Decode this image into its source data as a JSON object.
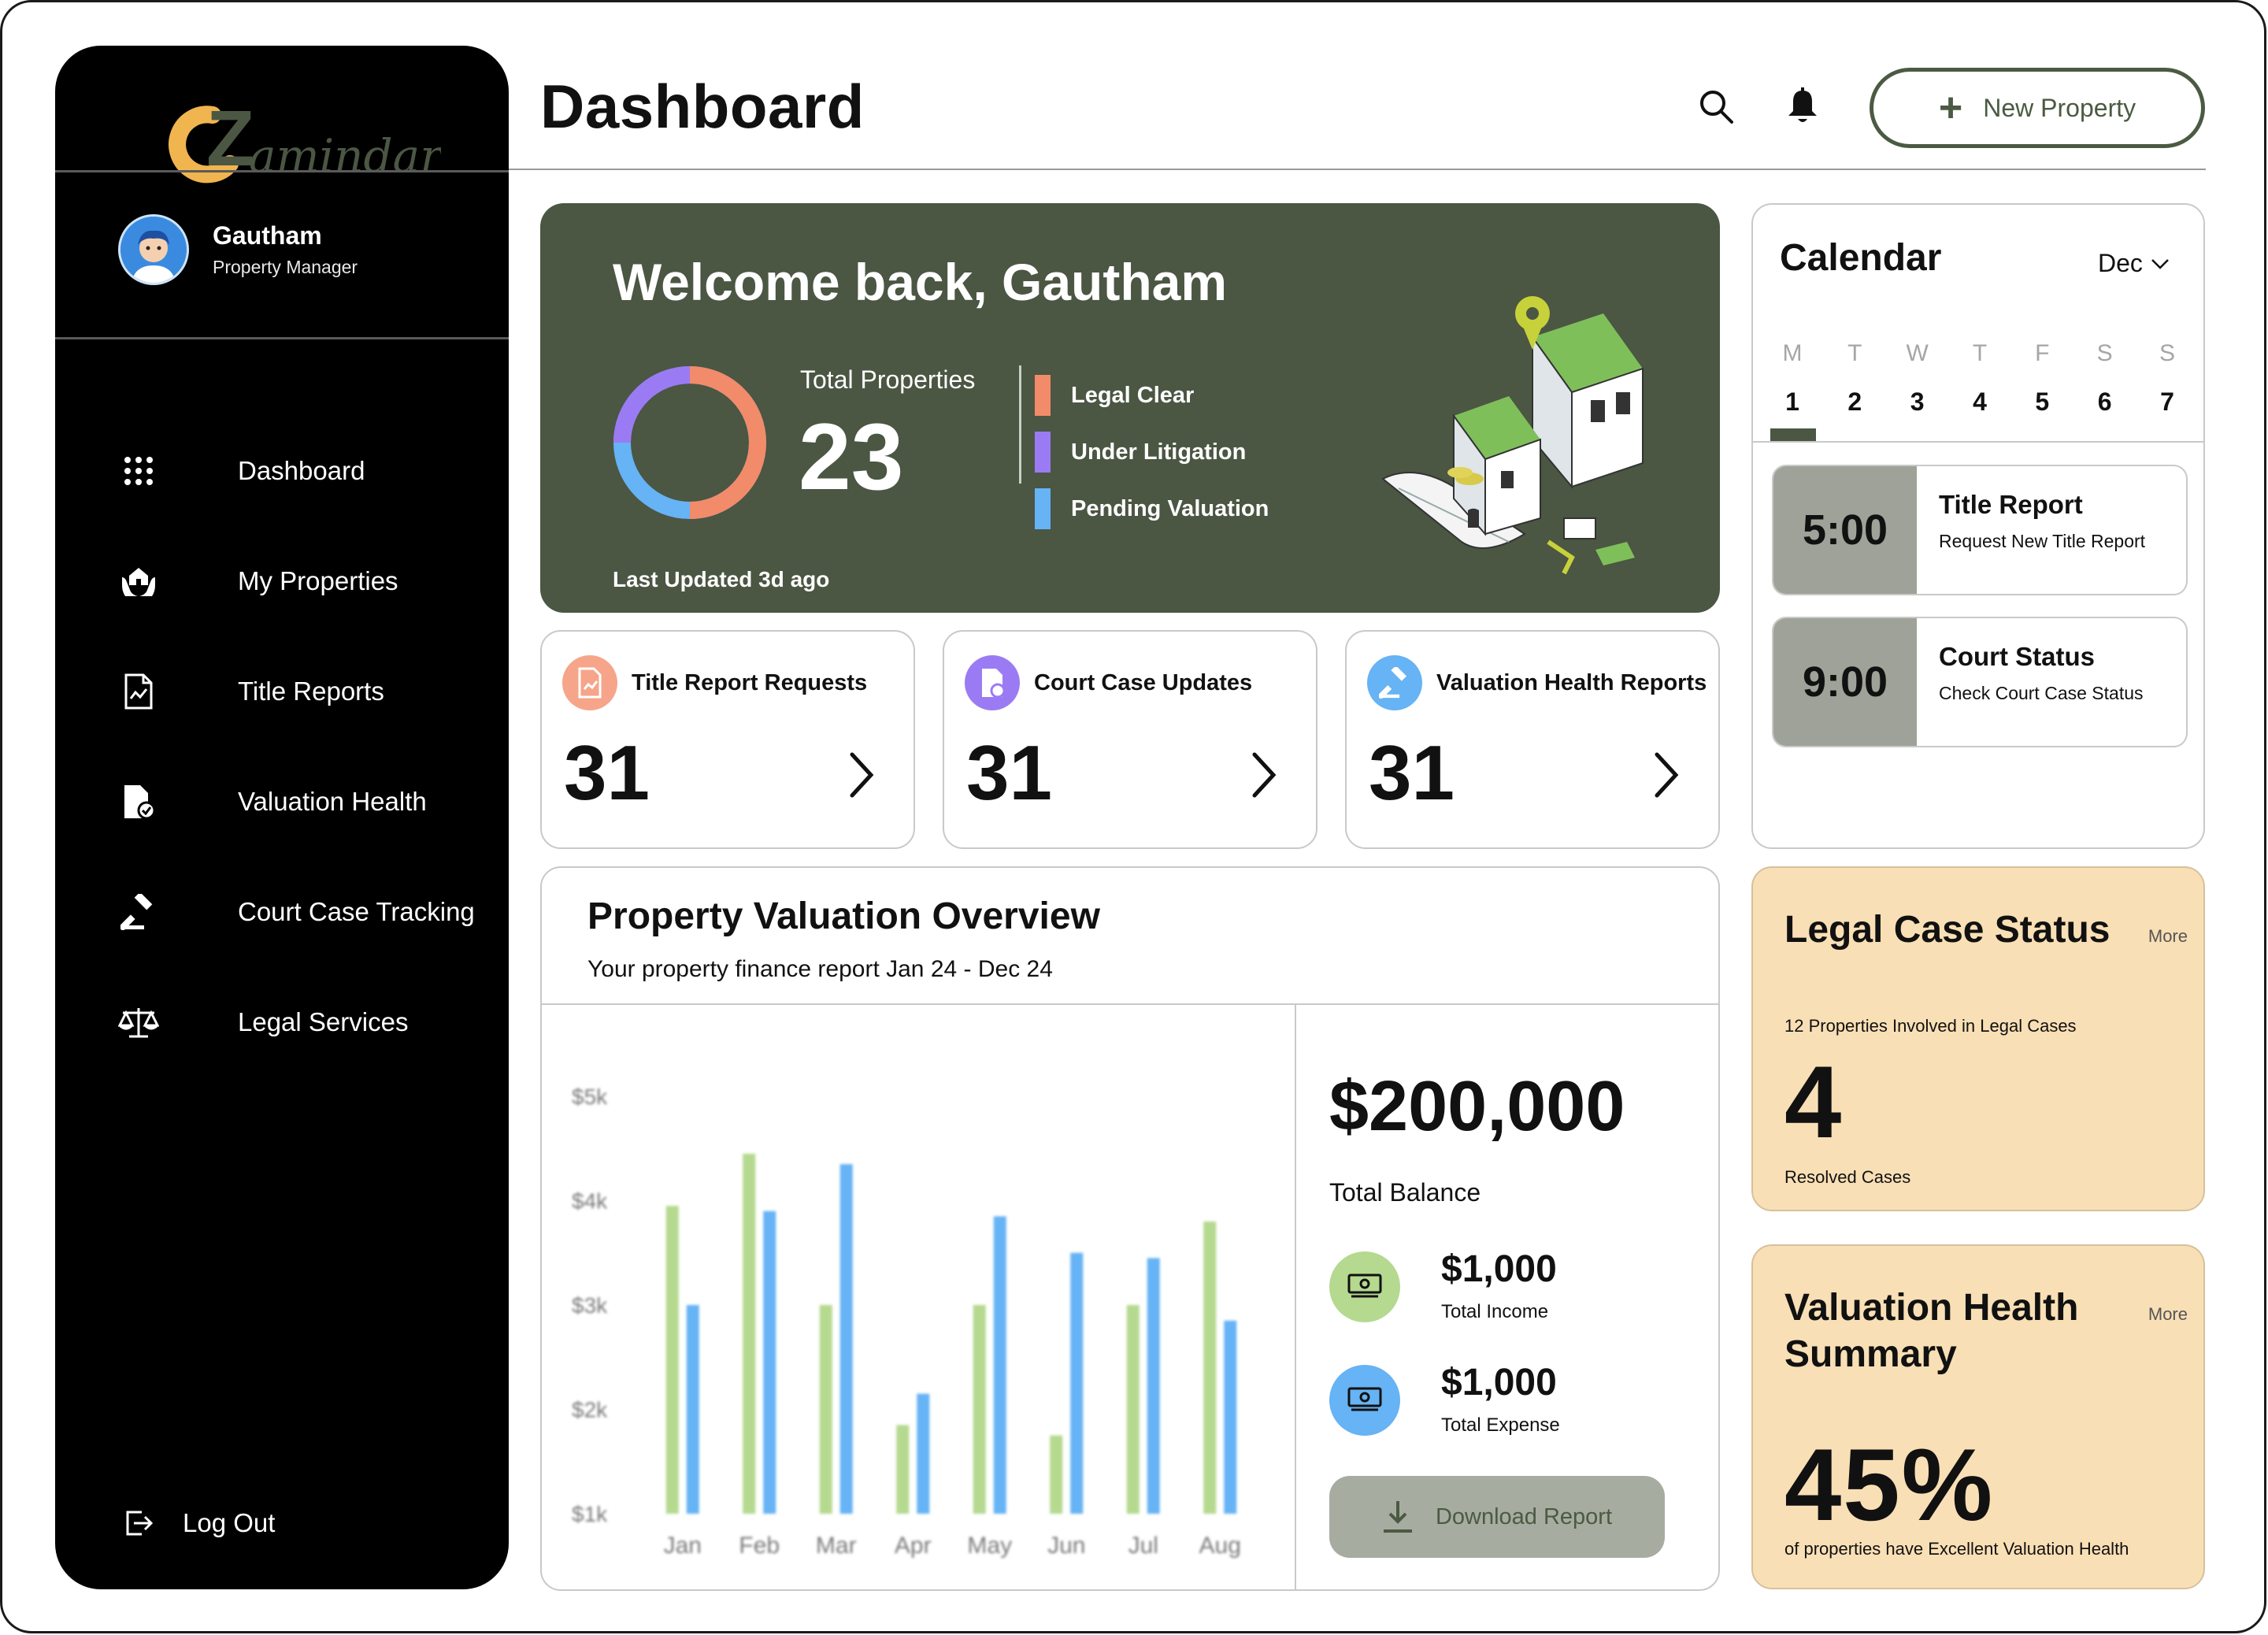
{
  "app": {
    "logo_text_e": "e",
    "logo_text_z": "Z",
    "logo_text_rest": "amindar"
  },
  "user": {
    "name": "Gautham",
    "role": "Property Manager"
  },
  "nav": {
    "items": [
      {
        "label": "Dashboard",
        "icon": "grid-icon"
      },
      {
        "label": "My Properties",
        "icon": "hand-house-icon"
      },
      {
        "label": "Title Reports",
        "icon": "document-chart-icon"
      },
      {
        "label": "Valuation Health",
        "icon": "file-check-icon"
      },
      {
        "label": "Court Case Tracking",
        "icon": "gavel-icon"
      },
      {
        "label": "Legal Services",
        "icon": "scales-icon"
      }
    ],
    "logout_label": "Log Out"
  },
  "header": {
    "title": "Dashboard",
    "new_property_label": "New Property"
  },
  "welcome": {
    "title": "Welcome back, Gautham",
    "total_properties_label": "Total Properties",
    "total_properties_value": "23",
    "legend": [
      {
        "label": "Legal Clear",
        "color": "#f28b6a"
      },
      {
        "label": "Under Litigation",
        "color": "#9b7bf3"
      },
      {
        "label": "Pending Valuation",
        "color": "#66b3f5"
      }
    ],
    "last_updated": "Last Updated 3d ago"
  },
  "stats": [
    {
      "title": "Title Report Requests",
      "value": "31",
      "badge_color": "#f28b6a",
      "icon": "document-chart-icon"
    },
    {
      "title": "Court Case Updates",
      "value": "31",
      "badge_color": "#9b7bf3",
      "icon": "file-status-icon"
    },
    {
      "title": "Valuation Health Reports",
      "value": "31",
      "badge_color": "#66b3f5",
      "icon": "gavel-icon"
    }
  ],
  "overview": {
    "title": "Property Valuation Overview",
    "subtitle": "Your property finance report  Jan 24 - Dec 24",
    "total_balance_value": "$200,000",
    "total_balance_label": "Total Balance",
    "income_value": "$1,000",
    "income_label": "Total Income",
    "expense_value": "$1,000",
    "expense_label": "Total Expense",
    "download_label": "Download Report",
    "income_color": "#b5d98f",
    "expense_color": "#66b3f5"
  },
  "chart_data": {
    "type": "bar",
    "categories": [
      "Jan",
      "Feb",
      "Mar",
      "Apr",
      "May",
      "Jun",
      "Jul",
      "Aug"
    ],
    "series": [
      {
        "values": [
          3.95,
          4.45,
          3.0,
          1.85,
          3.0,
          1.75,
          3.0,
          3.8
        ],
        "color": "#b5d98f"
      },
      {
        "values": [
          3.0,
          3.9,
          4.35,
          2.15,
          3.85,
          3.5,
          3.45,
          2.85
        ],
        "color": "#66b3f5"
      }
    ],
    "yticks": [
      "$5k",
      "$4k",
      "$3k",
      "$2k",
      "$1k"
    ],
    "ylim": [
      1,
      5
    ]
  },
  "calendar": {
    "title": "Calendar",
    "month": "Dec",
    "days": [
      {
        "dow": "M",
        "date": "1"
      },
      {
        "dow": "T",
        "date": "2"
      },
      {
        "dow": "W",
        "date": "3"
      },
      {
        "dow": "T",
        "date": "4"
      },
      {
        "dow": "F",
        "date": "5"
      },
      {
        "dow": "S",
        "date": "6"
      },
      {
        "dow": "S",
        "date": "7"
      }
    ],
    "events": [
      {
        "time": "5:00",
        "title": "Title Report",
        "subtitle": "Request New Title Report"
      },
      {
        "time": "9:00",
        "title": "Court Status",
        "subtitle": "Check Court Case Status"
      }
    ]
  },
  "legal_case": {
    "title": "Legal Case Status",
    "more": "More",
    "subtitle": "12 Properties Involved in Legal Cases",
    "value": "4",
    "footer": "Resolved Cases"
  },
  "valuation_summary": {
    "title": "Valuation Health Summary",
    "more": "More",
    "value": "45%",
    "footer": "of properties have Excellent Valuation Health"
  }
}
